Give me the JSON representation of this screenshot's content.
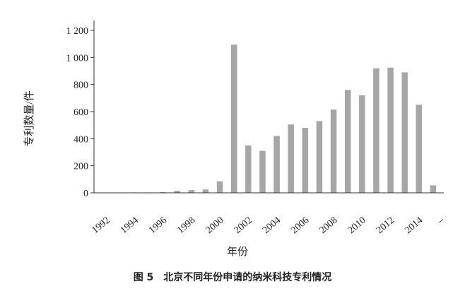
{
  "chart_data": {
    "type": "bar",
    "ylabel": "专利数量/件",
    "xlabel": "年份",
    "caption": "图 5　北京不同年份申请的纳米科技专利情况",
    "ylim": [
      0,
      1200
    ],
    "yticks": [
      0,
      200,
      400,
      600,
      800,
      1000,
      1200
    ],
    "ytick_labels": [
      "0",
      "200",
      "400",
      "600",
      "800",
      "1 000",
      "1 200"
    ],
    "xtick_labels": [
      "1992",
      "1994",
      "1996",
      "1998",
      "2000",
      "2002",
      "2004",
      "2006",
      "2008",
      "2010",
      "2012",
      "2014",
      "–"
    ],
    "categories": [
      "1992",
      "1993",
      "1994",
      "1995",
      "1996",
      "1997",
      "1998",
      "1999",
      "2000",
      "2001",
      "2002",
      "2003",
      "2004",
      "2005",
      "2006",
      "2007",
      "2008",
      "2009",
      "2010",
      "2011",
      "2012",
      "2013",
      "2014",
      "2015"
    ],
    "values": [
      2,
      2,
      3,
      3,
      5,
      15,
      20,
      25,
      85,
      1095,
      350,
      310,
      420,
      505,
      480,
      530,
      615,
      760,
      720,
      920,
      925,
      890,
      650,
      55
    ],
    "bar_color": "#a6a6a6",
    "grid": false
  }
}
